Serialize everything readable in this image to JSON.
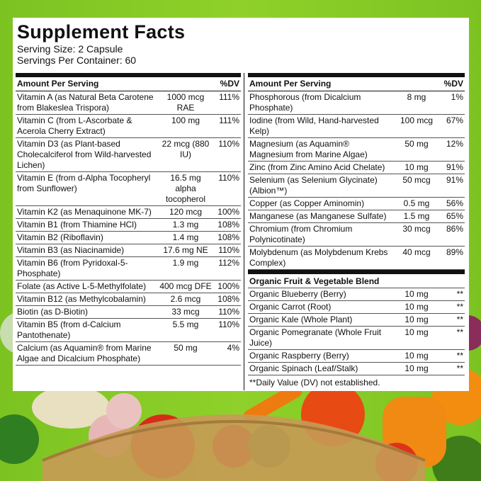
{
  "title": "Supplement Facts",
  "serving_size": "Serving Size: 2 Capsule",
  "servings_per_container": "Servings Per Container: 60",
  "left": {
    "header": [
      "Amount Per Serving",
      "%DV"
    ],
    "rows": [
      {
        "name": "Vitamin A (as Natural Beta Carotene from Blakeslea Trispora)",
        "amount": "1000 mcg RAE",
        "dv": "111%"
      },
      {
        "name": "Vitamin C (from L-Ascorbate & Acerola Cherry Extract)",
        "amount": "100 mg",
        "dv": "111%"
      },
      {
        "name": "Vitamin D3 (as Plant-based Cholecalciferol from Wild-harvested Lichen)",
        "amount": "22 mcg (880 IU)",
        "dv": "110%"
      },
      {
        "name": "Vitamin E (from d-Alpha Tocopheryl from Sunflower)",
        "amount": "16.5 mg alpha tocopherol",
        "dv": "110%"
      },
      {
        "name": "Vitamin K2 (as Menaquinone MK-7)",
        "amount": "120 mcg",
        "dv": "100%"
      },
      {
        "name": "Vitamin B1 (from Thiamine HCl)",
        "amount": "1.3 mg",
        "dv": "108%"
      },
      {
        "name": "Vitamin B2 (Riboflavin)",
        "amount": "1.4 mg",
        "dv": "108%"
      },
      {
        "name": "Vitamin B3 (as Niacinamide)",
        "amount": "17.6 mg NE",
        "dv": "110%"
      },
      {
        "name": "Vitamin B6 (from Pyridoxal-5-Phosphate)",
        "amount": "1.9 mg",
        "dv": "112%"
      },
      {
        "name": "Folate (as Active L-5-Methylfolate)",
        "amount": "400 mcg DFE",
        "dv": "100%"
      },
      {
        "name": "Vitamin B12 (as Methylcobalamin)",
        "amount": "2.6 mcg",
        "dv": "108%"
      },
      {
        "name": "Biotin (as D-Biotin)",
        "amount": "33 mcg",
        "dv": "110%"
      },
      {
        "name": "Vitamin B5 (from d-Calcium Pantothenate)",
        "amount": "5.5 mg",
        "dv": "110%"
      },
      {
        "name": "Calcium (as Aquamin® from Marine Algae and Dicalcium Phosphate)",
        "amount": "50 mg",
        "dv": "4%"
      }
    ]
  },
  "right": {
    "header": [
      "Amount Per Serving",
      "%DV"
    ],
    "rows": [
      {
        "name": "Phosphorous (from Dicalcium Phosphate)",
        "amount": "8 mg",
        "dv": "1%"
      },
      {
        "name": "Iodine (from Wild, Hand-harvested Kelp)",
        "amount": "100 mcg",
        "dv": "67%"
      },
      {
        "name": "Magnesium (as Aquamin® Magnesium from Marine Algae)",
        "amount": "50 mg",
        "dv": "12%"
      },
      {
        "name": "Zinc (from Zinc Amino Acid Chelate)",
        "amount": "10 mg",
        "dv": "91%"
      },
      {
        "name": "Selenium (as Selenium Glycinate) (Albion™)",
        "amount": "50 mcg",
        "dv": "91%"
      },
      {
        "name": "Copper (as Copper Aminomin)",
        "amount": "0.5 mg",
        "dv": "56%"
      },
      {
        "name": "Manganese (as Manganese Sulfate)",
        "amount": "1.5 mg",
        "dv": "65%"
      },
      {
        "name": "Chromium (from Chromium Polynicotinate)",
        "amount": "30 mcg",
        "dv": "86%"
      },
      {
        "name": "Molybdenum (as Molybdenum Krebs Complex)",
        "amount": "40 mcg",
        "dv": "89%"
      }
    ],
    "blend": {
      "title": "Organic Fruit & Vegetable Blend",
      "rows": [
        {
          "name": "Organic Blueberry (Berry)",
          "amount": "10 mg",
          "dv": "**"
        },
        {
          "name": "Organic Carrot (Root)",
          "amount": "10 mg",
          "dv": "**"
        },
        {
          "name": "Organic Kale (Whole Plant)",
          "amount": "10 mg",
          "dv": "**"
        },
        {
          "name": "Organic Pomegranate (Whole Fruit Juice)",
          "amount": "10 mg",
          "dv": "**"
        },
        {
          "name": "Organic Raspberry (Berry)",
          "amount": "10 mg",
          "dv": "**"
        },
        {
          "name": "Organic Spinach (Leaf/Stalk)",
          "amount": "10 mg",
          "dv": "**"
        }
      ]
    },
    "footnote": "**Daily Value (DV) not established."
  }
}
